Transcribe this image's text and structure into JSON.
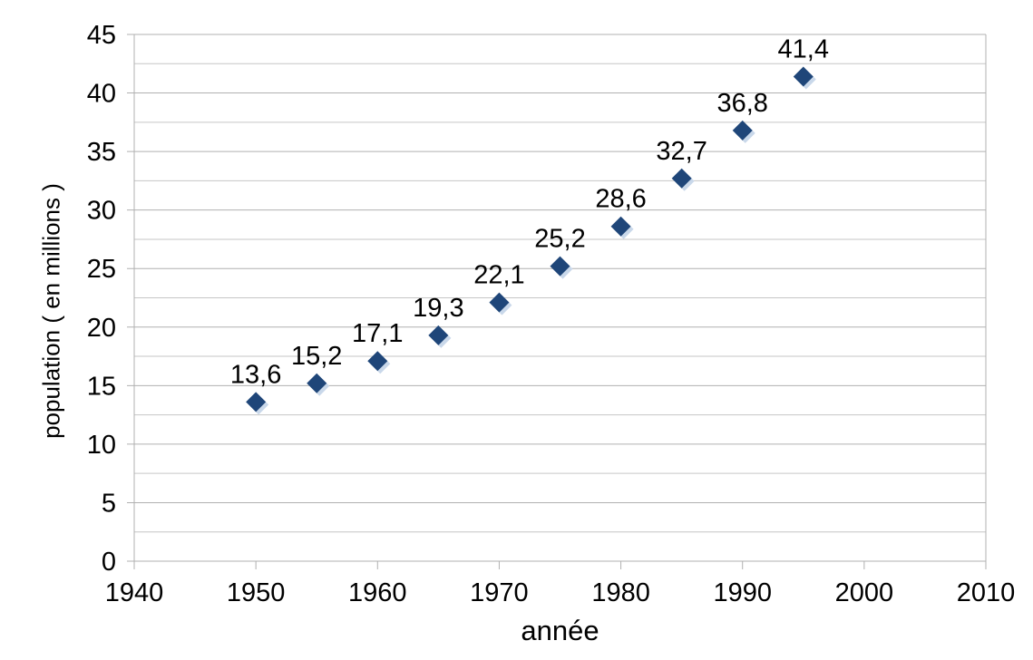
{
  "chart_data": {
    "type": "scatter",
    "title": "",
    "xlabel": "année",
    "ylabel": "population ( en millions )",
    "x": [
      1950,
      1955,
      1960,
      1965,
      1970,
      1975,
      1980,
      1985,
      1990,
      1995
    ],
    "y": [
      13.6,
      15.2,
      17.1,
      19.3,
      22.1,
      25.2,
      28.6,
      32.7,
      36.8,
      41.4
    ],
    "point_labels": [
      "13,6",
      "15,2",
      "17,1",
      "19,3",
      "22,1",
      "25,2",
      "28,6",
      "32,7",
      "36,8",
      "41,4"
    ],
    "xlim": [
      1940,
      2010
    ],
    "ylim": [
      0,
      45
    ],
    "x_ticks": [
      1940,
      1950,
      1960,
      1970,
      1980,
      1990,
      2000,
      2010
    ],
    "x_tick_labels": [
      "1940",
      "1950",
      "1960",
      "1970",
      "1980",
      "1990",
      "2000",
      "2010"
    ],
    "y_ticks": [
      0,
      5,
      10,
      15,
      20,
      25,
      30,
      35,
      40,
      45
    ],
    "y_tick_labels": [
      "0",
      "5",
      "10",
      "15",
      "20",
      "25",
      "30",
      "35",
      "40",
      "45"
    ],
    "y_minor_step": 2.5,
    "grid": "horizontal-only",
    "legend": "none",
    "marker": "diamond",
    "colors": {
      "marker": "#1F4679",
      "marker_highlight": "#C9D8EA",
      "gridline": "#C6C6C6",
      "axis": "#B0B0B0",
      "text": "#000000",
      "background": "#FFFFFF"
    }
  }
}
